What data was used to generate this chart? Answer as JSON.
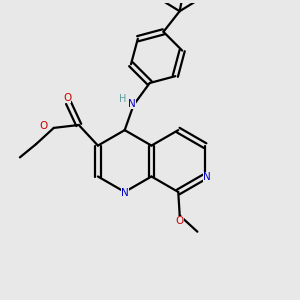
{
  "bg_color": "#e8e8e8",
  "bond_color": "#000000",
  "N_color": "#0000cc",
  "O_color": "#cc0000",
  "H_color": "#5f9ea0",
  "linewidth": 1.6,
  "figsize": [
    3.0,
    3.0
  ],
  "dpi": 100,
  "xlim": [
    0,
    10
  ],
  "ylim": [
    0,
    10
  ]
}
